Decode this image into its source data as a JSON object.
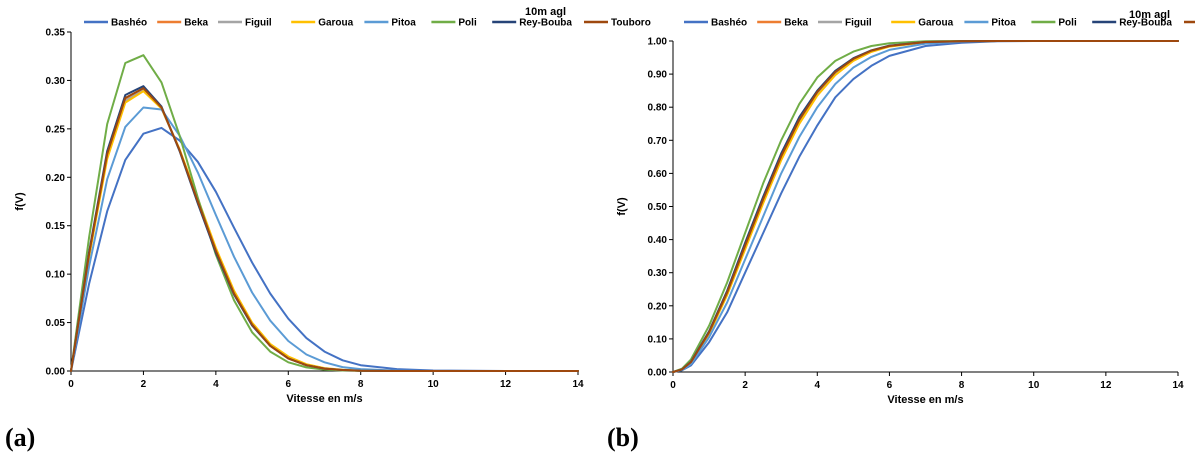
{
  "chart_data": [
    {
      "type": "line",
      "panel_label": "(a)",
      "corner_note": "10m agl",
      "xlabel": "Vitesse en m/s",
      "ylabel": "f(V)",
      "xlim": [
        0,
        14
      ],
      "ylim": [
        0,
        0.35
      ],
      "xticks": [
        "0",
        "2",
        "4",
        "6",
        "8",
        "10",
        "12",
        "14"
      ],
      "yticks": [
        "0.00",
        "0.05",
        "0.10",
        "0.15",
        "0.20",
        "0.25",
        "0.30",
        "0.35"
      ],
      "grid": false,
      "legend_position": "top",
      "x": [
        0,
        0.5,
        1,
        1.5,
        2,
        2.5,
        3,
        3.5,
        4,
        4.5,
        5,
        5.5,
        6,
        6.5,
        7,
        7.5,
        8,
        9,
        10,
        12,
        14
      ],
      "series": [
        {
          "name": "Bashéo",
          "color": "#4472C4",
          "values": [
            0,
            0.09,
            0.165,
            0.218,
            0.245,
            0.251,
            0.238,
            0.216,
            0.185,
            0.148,
            0.112,
            0.08,
            0.054,
            0.034,
            0.02,
            0.011,
            0.006,
            0.002,
            0.0005,
            0,
            0
          ]
        },
        {
          "name": "Beka",
          "color": "#ED7D31",
          "values": [
            0,
            0.12,
            0.222,
            0.28,
            0.291,
            0.272,
            0.228,
            0.175,
            0.124,
            0.08,
            0.048,
            0.026,
            0.013,
            0.006,
            0.0025,
            0.001,
            0.0003,
            0,
            0,
            0,
            0
          ]
        },
        {
          "name": "Figuil",
          "color": "#A5A5A5",
          "values": [
            0,
            0.119,
            0.221,
            0.279,
            0.29,
            0.271,
            0.228,
            0.176,
            0.125,
            0.081,
            0.049,
            0.027,
            0.014,
            0.006,
            0.0026,
            0.001,
            0.0003,
            0,
            0,
            0,
            0
          ]
        },
        {
          "name": "Garoua",
          "color": "#FFC000",
          "values": [
            0,
            0.118,
            0.219,
            0.277,
            0.289,
            0.271,
            0.229,
            0.178,
            0.127,
            0.083,
            0.05,
            0.028,
            0.015,
            0.007,
            0.003,
            0.0012,
            0.0004,
            0,
            0,
            0,
            0
          ]
        },
        {
          "name": "Pitoa",
          "color": "#5B9BD5",
          "values": [
            0,
            0.108,
            0.198,
            0.252,
            0.272,
            0.27,
            0.243,
            0.205,
            0.161,
            0.118,
            0.081,
            0.052,
            0.031,
            0.017,
            0.009,
            0.004,
            0.002,
            0.0004,
            0,
            0,
            0
          ]
        },
        {
          "name": "Poli",
          "color": "#70AD47",
          "values": [
            0,
            0.138,
            0.255,
            0.318,
            0.326,
            0.298,
            0.243,
            0.179,
            0.12,
            0.073,
            0.04,
            0.02,
            0.009,
            0.0037,
            0.0014,
            0.0005,
            0.0001,
            0,
            0,
            0,
            0
          ]
        },
        {
          "name": "Rey-Bouba",
          "color": "#264478",
          "values": [
            0,
            0.123,
            0.227,
            0.285,
            0.294,
            0.273,
            0.227,
            0.173,
            0.122,
            0.079,
            0.047,
            0.026,
            0.013,
            0.006,
            0.0025,
            0.001,
            0.0003,
            0,
            0,
            0,
            0
          ]
        },
        {
          "name": "Touboro",
          "color": "#9E480E",
          "values": [
            0,
            0.121,
            0.224,
            0.282,
            0.292,
            0.272,
            0.228,
            0.175,
            0.124,
            0.08,
            0.048,
            0.026,
            0.013,
            0.006,
            0.0025,
            0.001,
            0.0003,
            0,
            0,
            0,
            0
          ]
        }
      ]
    },
    {
      "type": "line",
      "panel_label": "(b)",
      "corner_note": "10m agl",
      "xlabel": "Vitesse en m/s",
      "ylabel": "f(V)",
      "xlim": [
        0,
        14
      ],
      "ylim": [
        0,
        1.0
      ],
      "xticks": [
        "0",
        "2",
        "4",
        "6",
        "8",
        "10",
        "12",
        "14"
      ],
      "yticks": [
        "0.00",
        "0.10",
        "0.20",
        "0.30",
        "0.40",
        "0.50",
        "0.60",
        "0.70",
        "0.80",
        "0.90",
        "1.00"
      ],
      "grid": false,
      "legend_position": "top",
      "x": [
        0,
        0.25,
        0.5,
        1,
        1.5,
        2,
        2.5,
        3,
        3.5,
        4,
        4.5,
        5,
        5.5,
        6,
        7,
        8,
        9,
        10,
        12,
        14
      ],
      "series": [
        {
          "name": "Bashéo",
          "color": "#4472C4",
          "values": [
            0,
            0.005,
            0.02,
            0.09,
            0.18,
            0.3,
            0.42,
            0.54,
            0.65,
            0.745,
            0.83,
            0.885,
            0.925,
            0.955,
            0.985,
            0.995,
            0.999,
            1,
            1,
            1
          ]
        },
        {
          "name": "Beka",
          "color": "#ED7D31",
          "values": [
            0,
            0.008,
            0.03,
            0.12,
            0.24,
            0.38,
            0.52,
            0.65,
            0.76,
            0.845,
            0.905,
            0.945,
            0.97,
            0.985,
            0.997,
            0.999,
            1,
            1,
            1,
            1
          ]
        },
        {
          "name": "Figuil",
          "color": "#A5A5A5",
          "values": [
            0,
            0.007,
            0.028,
            0.117,
            0.235,
            0.375,
            0.515,
            0.645,
            0.755,
            0.84,
            0.9,
            0.942,
            0.968,
            0.984,
            0.996,
            0.999,
            1,
            1,
            1,
            1
          ]
        },
        {
          "name": "Garoua",
          "color": "#FFC000",
          "values": [
            0,
            0.007,
            0.027,
            0.115,
            0.232,
            0.37,
            0.51,
            0.64,
            0.75,
            0.835,
            0.897,
            0.94,
            0.967,
            0.983,
            0.996,
            0.999,
            1,
            1,
            1,
            1
          ]
        },
        {
          "name": "Pitoa",
          "color": "#5B9BD5",
          "values": [
            0,
            0.006,
            0.024,
            0.105,
            0.21,
            0.34,
            0.47,
            0.6,
            0.71,
            0.8,
            0.87,
            0.92,
            0.952,
            0.973,
            0.992,
            0.998,
            1,
            1,
            1,
            1
          ]
        },
        {
          "name": "Poli",
          "color": "#70AD47",
          "values": [
            0,
            0.01,
            0.038,
            0.14,
            0.27,
            0.42,
            0.57,
            0.7,
            0.81,
            0.89,
            0.94,
            0.968,
            0.985,
            0.993,
            0.999,
            1,
            1,
            1,
            1,
            1
          ]
        },
        {
          "name": "Rey-Bouba",
          "color": "#264478",
          "values": [
            0,
            0.008,
            0.031,
            0.123,
            0.245,
            0.39,
            0.53,
            0.66,
            0.77,
            0.85,
            0.91,
            0.948,
            0.972,
            0.986,
            0.997,
            0.999,
            1,
            1,
            1,
            1
          ]
        },
        {
          "name": "Touboro",
          "color": "#9E480E",
          "values": [
            0,
            0.008,
            0.03,
            0.12,
            0.24,
            0.382,
            0.522,
            0.652,
            0.762,
            0.846,
            0.906,
            0.946,
            0.971,
            0.985,
            0.997,
            0.999,
            1,
            1,
            1,
            1
          ]
        }
      ]
    }
  ]
}
